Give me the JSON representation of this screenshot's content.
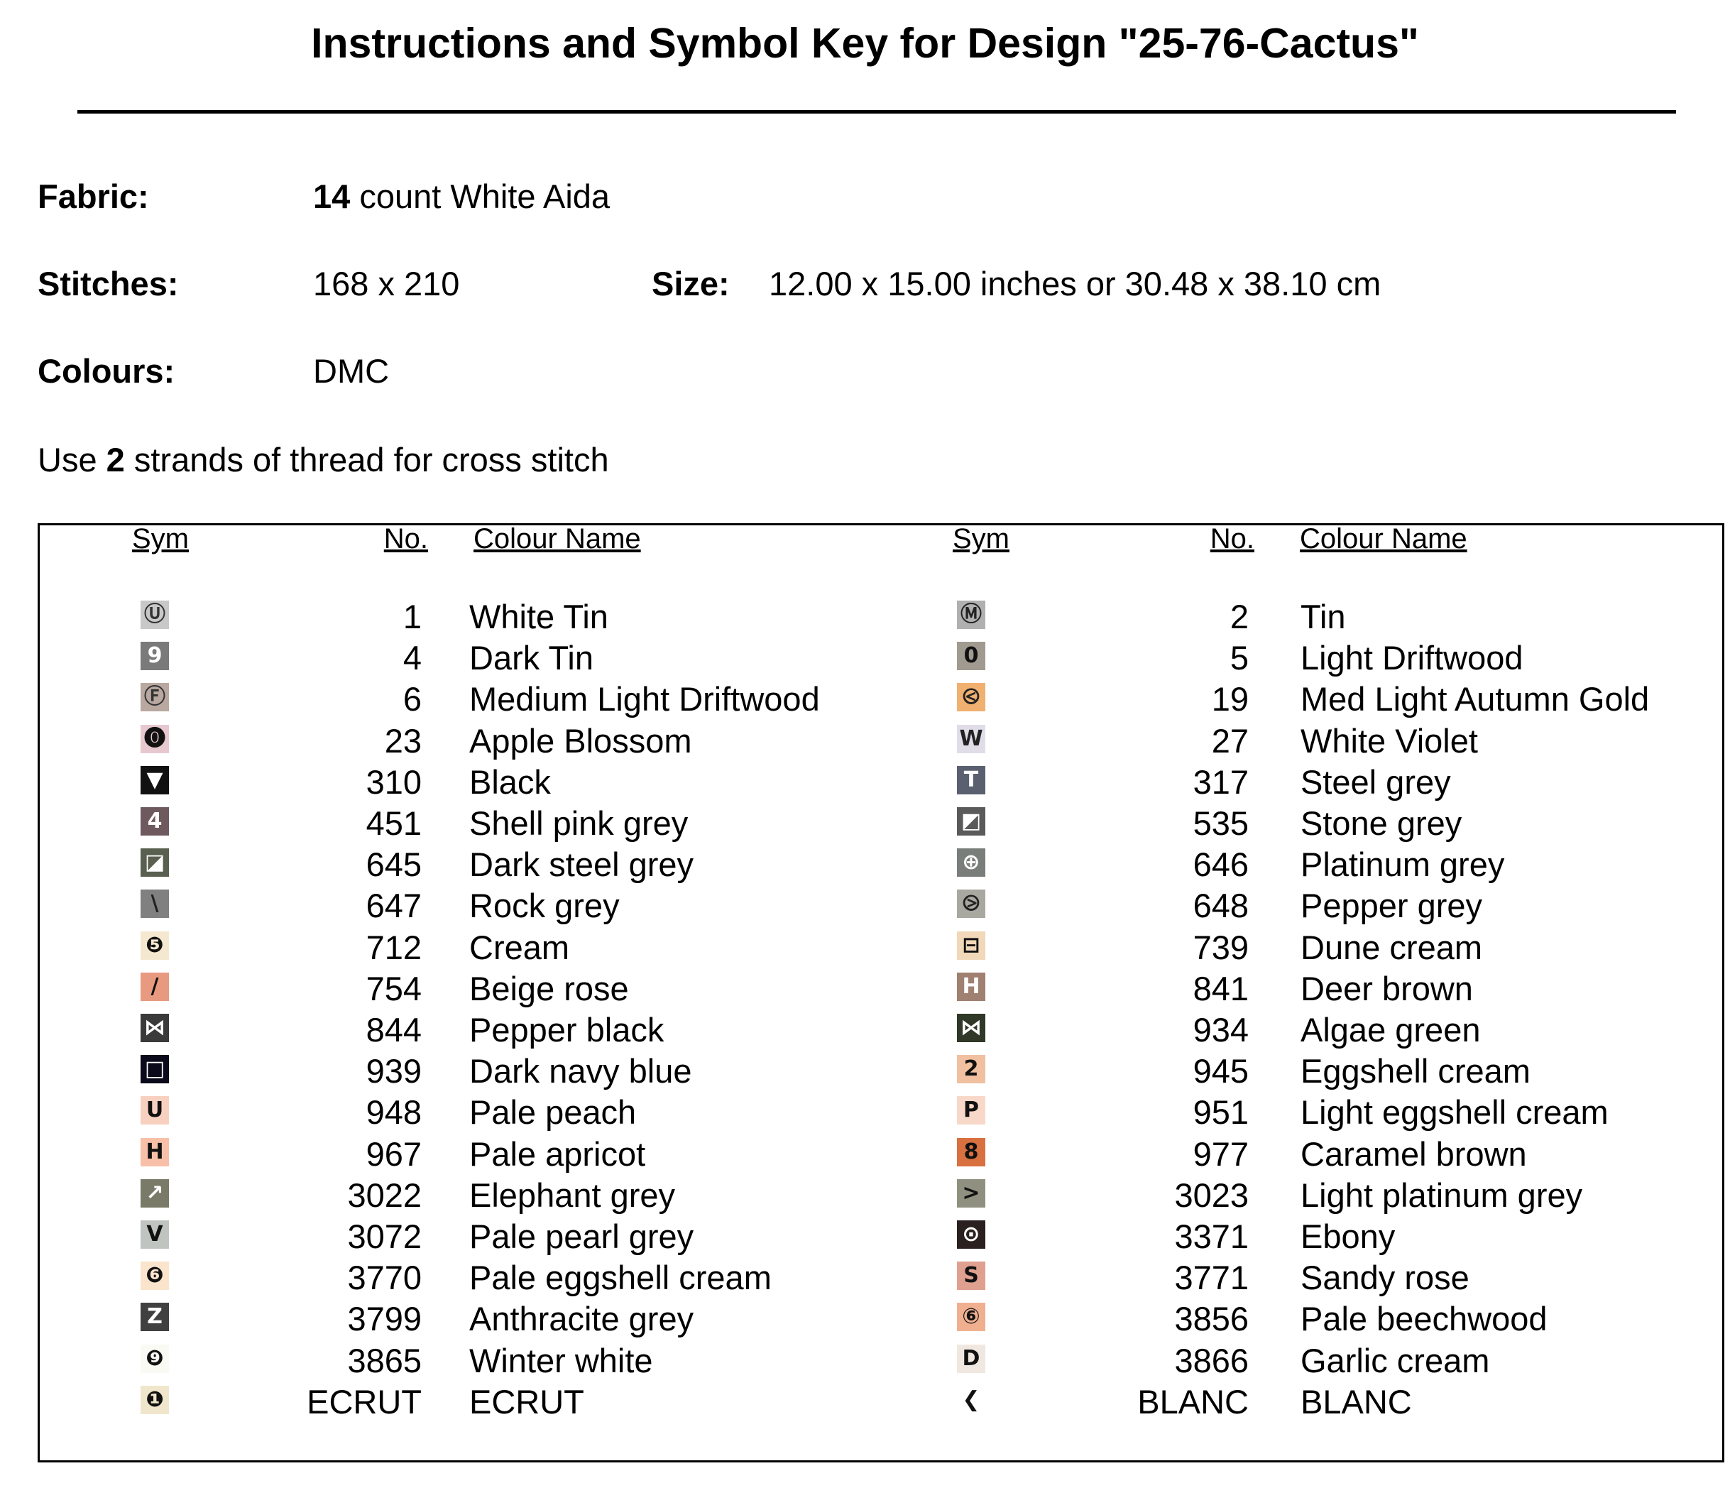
{
  "title": "Instructions and Symbol Key for Design \"25-76-Cactus\"",
  "fabric": {
    "label": "Fabric:",
    "count": "14",
    "text": "count White Aida"
  },
  "stitches": {
    "label": "Stitches:",
    "value": "168 x 210"
  },
  "size": {
    "label": "Size:",
    "value": "12.00 x 15.00 inches or 30.48 x 38.10 cm"
  },
  "colours": {
    "label": "Colours:",
    "value": "DMC"
  },
  "instruction": {
    "pre": "Use",
    "strands": "2",
    "post": "strands of thread for cross stitch"
  },
  "table": {
    "headers": {
      "sym": "Sym",
      "no": "No.",
      "name": "Colour Name"
    },
    "left": [
      {
        "sym": "Ⓤ",
        "no": "1",
        "name": "White Tin",
        "bg": "#c8c8c8",
        "fg": "#333"
      },
      {
        "sym": "9",
        "no": "4",
        "name": "Dark Tin",
        "bg": "#7a7a7a",
        "fg": "#fff"
      },
      {
        "sym": "Ⓕ",
        "no": "6",
        "name": "Medium Light Driftwood",
        "bg": "#b8a8a0",
        "fg": "#333"
      },
      {
        "sym": "⓿",
        "no": "23",
        "name": "Apple Blossom",
        "bg": "#e8c8d0",
        "fg": "#111"
      },
      {
        "sym": "▼",
        "no": "310",
        "name": "Black",
        "bg": "#111111",
        "fg": "#fff"
      },
      {
        "sym": "4",
        "no": "451",
        "name": "Shell pink grey",
        "bg": "#6e5a5e",
        "fg": "#fff"
      },
      {
        "sym": "◪",
        "no": "645",
        "name": "Dark steel grey",
        "bg": "#5a6050",
        "fg": "#fff"
      },
      {
        "sym": "\\",
        "no": "647",
        "name": "Rock grey",
        "bg": "#808080",
        "fg": "#222"
      },
      {
        "sym": "❺",
        "no": "712",
        "name": "Cream",
        "bg": "#f5e8d0",
        "fg": "#111"
      },
      {
        "sym": "/",
        "no": "754",
        "name": "Beige rose",
        "bg": "#e89a80",
        "fg": "#111"
      },
      {
        "sym": "⋈",
        "no": "844",
        "name": "Pepper black",
        "bg": "#3a3a3a",
        "fg": "#fff"
      },
      {
        "sym": "□",
        "no": "939",
        "name": "Dark navy blue",
        "bg": "#0a0a1a",
        "fg": "#fff"
      },
      {
        "sym": "U",
        "no": "948",
        "name": "Pale peach",
        "bg": "#f8d0c0",
        "fg": "#111"
      },
      {
        "sym": "H",
        "no": "967",
        "name": "Pale apricot",
        "bg": "#f8c0a8",
        "fg": "#111"
      },
      {
        "sym": "↗",
        "no": "3022",
        "name": "Elephant grey",
        "bg": "#7a7a68",
        "fg": "#fff"
      },
      {
        "sym": "V",
        "no": "3072",
        "name": "Pale pearl grey",
        "bg": "#c0c4c0",
        "fg": "#111"
      },
      {
        "sym": "❻",
        "no": "3770",
        "name": "Pale eggshell cream",
        "bg": "#fbe4cc",
        "fg": "#111"
      },
      {
        "sym": "Z",
        "no": "3799",
        "name": "Anthracite grey",
        "bg": "#404040",
        "fg": "#fff"
      },
      {
        "sym": "❾",
        "no": "3865",
        "name": "Winter white",
        "bg": "#fafaf5",
        "fg": "#111"
      },
      {
        "sym": "❶",
        "no": "ECRUT",
        "name": "ECRUT",
        "bg": "#f0e6cc",
        "fg": "#111"
      }
    ],
    "right": [
      {
        "sym": "Ⓜ",
        "no": "2",
        "name": "Tin",
        "bg": "#b0b0b0",
        "fg": "#222"
      },
      {
        "sym": "0",
        "no": "5",
        "name": "Light Driftwood",
        "bg": "#a09a90",
        "fg": "#111"
      },
      {
        "sym": "⧀",
        "no": "19",
        "name": "Med Light Autumn Gold",
        "bg": "#f0b070",
        "fg": "#222"
      },
      {
        "sym": "W",
        "no": "27",
        "name": "White Violet",
        "bg": "#e0dce8",
        "fg": "#222"
      },
      {
        "sym": "T",
        "no": "317",
        "name": "Steel grey",
        "bg": "#5a6070",
        "fg": "#fff"
      },
      {
        "sym": "◩",
        "no": "535",
        "name": "Stone grey",
        "bg": "#5a5a5a",
        "fg": "#fff"
      },
      {
        "sym": "⊕",
        "no": "646",
        "name": "Platinum grey",
        "bg": "#7a7e7a",
        "fg": "#fff"
      },
      {
        "sym": "⧁",
        "no": "648",
        "name": "Pepper grey",
        "bg": "#a8a8a0",
        "fg": "#222"
      },
      {
        "sym": "⊟",
        "no": "739",
        "name": "Dune cream",
        "bg": "#f0d8b8",
        "fg": "#111"
      },
      {
        "sym": "H",
        "no": "841",
        "name": "Deer brown",
        "bg": "#a08070",
        "fg": "#fff"
      },
      {
        "sym": "⋈",
        "no": "934",
        "name": "Algae green",
        "bg": "#303828",
        "fg": "#fff"
      },
      {
        "sym": "2",
        "no": "945",
        "name": "Eggshell cream",
        "bg": "#f0c0a0",
        "fg": "#111"
      },
      {
        "sym": "P",
        "no": "951",
        "name": "Light eggshell cream",
        "bg": "#f8d8c8",
        "fg": "#111"
      },
      {
        "sym": "8",
        "no": "977",
        "name": "Caramel brown",
        "bg": "#d87040",
        "fg": "#111"
      },
      {
        "sym": ">",
        "no": "3023",
        "name": "Light platinum grey",
        "bg": "#909080",
        "fg": "#111"
      },
      {
        "sym": "⊙",
        "no": "3371",
        "name": "Ebony",
        "bg": "#2a2020",
        "fg": "#fff"
      },
      {
        "sym": "S",
        "no": "3771",
        "name": "Sandy rose",
        "bg": "#e0a090",
        "fg": "#111"
      },
      {
        "sym": "⑥",
        "no": "3856",
        "name": "Pale beechwood",
        "bg": "#f0b090",
        "fg": "#111"
      },
      {
        "sym": "D",
        "no": "3866",
        "name": "Garlic cream",
        "bg": "#f0e8e0",
        "fg": "#111"
      },
      {
        "sym": "❮",
        "no": "BLANC",
        "name": "BLANC",
        "bg": "#ffffff",
        "fg": "#111"
      }
    ]
  }
}
